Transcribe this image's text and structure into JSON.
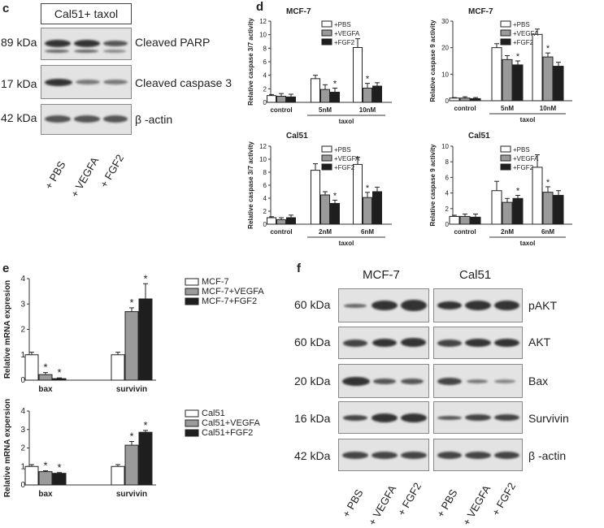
{
  "panels": {
    "c": "c",
    "d": "d",
    "e": "e",
    "f": "f"
  },
  "panel_c": {
    "title": "Cal51+ taxol",
    "rows": [
      {
        "kda": "89 kDa",
        "label": "Cleaved PARP"
      },
      {
        "kda": "17 kDa",
        "label": "Cleaved caspase 3"
      },
      {
        "kda": "42 kDa",
        "label": "β -actin"
      }
    ],
    "lanes": [
      "+ PBS",
      "+ VEGFA",
      "+ FGF2"
    ]
  },
  "panel_f": {
    "groups": [
      "MCF-7",
      "Cal51"
    ],
    "rows": [
      {
        "kda": "60 kDa",
        "label": "pAKT"
      },
      {
        "kda": "60 kDa",
        "label": "AKT"
      },
      {
        "kda": "20 kDa",
        "label": "Bax"
      },
      {
        "kda": "16 kDa",
        "label": "Survivin"
      },
      {
        "kda": "42 kDa",
        "label": "β -actin"
      }
    ],
    "lanes": [
      "+ PBS",
      "+ VEGFA",
      "+ FGF2",
      "+ PBS",
      "+ VEGFA",
      "+ FGF2"
    ]
  },
  "colors": {
    "pbs": "#ffffff",
    "vegfa": "#9a9a9a",
    "fgf2": "#1e1e1e",
    "axis": "#333333"
  },
  "chart_data": [
    {
      "id": "d1",
      "type": "bar",
      "title": "MCF-7",
      "ylabel": "Relative caspase 3/7 activity",
      "ylim": [
        0,
        12
      ],
      "yticks": [
        0,
        2,
        4,
        6,
        8,
        10,
        12
      ],
      "categories": [
        "control",
        "5nM",
        "10nM"
      ],
      "group_label": "taxol",
      "series": [
        {
          "name": "+PBS",
          "values": [
            1.0,
            3.5,
            8.1
          ],
          "errors": [
            0.15,
            0.5,
            1.3
          ]
        },
        {
          "name": "+VEGFA",
          "values": [
            0.9,
            1.9,
            2.1
          ],
          "errors": [
            0.4,
            0.7,
            0.7
          ]
        },
        {
          "name": "+FGF2",
          "values": [
            0.8,
            1.5,
            2.4
          ],
          "errors": [
            0.4,
            0.6,
            0.5
          ]
        }
      ],
      "annotations": [
        "",
        "*",
        "*",
        "",
        "*",
        "*"
      ]
    },
    {
      "id": "d2",
      "type": "bar",
      "title": "MCF-7",
      "ylabel": "Relative caspase 9 activity",
      "ylim": [
        0,
        30
      ],
      "yticks": [
        0,
        10,
        20,
        30
      ],
      "categories": [
        "control",
        "5nM",
        "10nM"
      ],
      "group_label": "taxol",
      "series": [
        {
          "name": "+PBS",
          "values": [
            1.0,
            20.0,
            25.0
          ],
          "errors": [
            0.2,
            1.5,
            2.0
          ]
        },
        {
          "name": "+VEGFA",
          "values": [
            1.0,
            15.5,
            16.5
          ],
          "errors": [
            0.5,
            1.5,
            1.5
          ]
        },
        {
          "name": "+FGF2",
          "values": [
            0.8,
            13.5,
            13.0
          ],
          "errors": [
            0.4,
            1.5,
            1.5
          ]
        }
      ],
      "annotations": [
        "",
        "*",
        "*",
        "",
        "*",
        "*"
      ]
    },
    {
      "id": "d3",
      "type": "bar",
      "title": "Cal51",
      "ylabel": "Relative caspase 3/7 activity",
      "ylim": [
        0,
        12
      ],
      "yticks": [
        0,
        2,
        4,
        6,
        8,
        10,
        12
      ],
      "categories": [
        "control",
        "2nM",
        "6nM"
      ],
      "group_label": "taxol",
      "series": [
        {
          "name": "+PBS",
          "values": [
            1.0,
            8.3,
            9.2
          ],
          "errors": [
            0.15,
            1.0,
            1.1
          ]
        },
        {
          "name": "+VEGFA",
          "values": [
            0.7,
            4.5,
            4.1
          ],
          "errors": [
            0.3,
            0.5,
            0.8
          ]
        },
        {
          "name": "+FGF2",
          "values": [
            1.0,
            3.2,
            5.0
          ],
          "errors": [
            0.4,
            0.5,
            0.7
          ]
        }
      ],
      "annotations": [
        "",
        "*",
        "*",
        "",
        "*",
        "*"
      ]
    },
    {
      "id": "d4",
      "type": "bar",
      "title": "Cal51",
      "ylabel": "Relative caspase 9 activity",
      "ylim": [
        0,
        10
      ],
      "yticks": [
        0,
        2,
        4,
        6,
        8,
        10
      ],
      "categories": [
        "control",
        "2nM",
        "6nM"
      ],
      "group_label": "taxol",
      "series": [
        {
          "name": "+PBS",
          "values": [
            1.0,
            4.3,
            7.3
          ],
          "errors": [
            0.15,
            1.2,
            1.6
          ]
        },
        {
          "name": "+VEGFA",
          "values": [
            1.0,
            2.8,
            4.1
          ],
          "errors": [
            0.3,
            0.5,
            0.7
          ]
        },
        {
          "name": "+FGF2",
          "values": [
            0.9,
            3.3,
            3.7
          ],
          "errors": [
            0.4,
            0.4,
            0.6
          ]
        }
      ],
      "annotations": [
        "",
        "*",
        "*",
        "",
        "*",
        "*"
      ]
    },
    {
      "id": "e1",
      "type": "bar",
      "title": "",
      "ylabel": "Relative mRNA expresion",
      "ylim": [
        0,
        4
      ],
      "yticks": [
        0,
        1,
        2,
        3,
        4
      ],
      "categories": [
        "bax",
        "survivin"
      ],
      "series": [
        {
          "name": "MCF-7",
          "values": [
            1.0,
            1.0
          ],
          "errors": [
            0.1,
            0.1
          ]
        },
        {
          "name": "MCF-7+VEGFA",
          "values": [
            0.22,
            2.7
          ],
          "errors": [
            0.08,
            0.15
          ]
        },
        {
          "name": "MCF-7+FGF2",
          "values": [
            0.06,
            3.2
          ],
          "errors": [
            0.03,
            0.6
          ]
        }
      ],
      "annotations": [
        "*",
        "*",
        "*",
        "*"
      ]
    },
    {
      "id": "e2",
      "type": "bar",
      "title": "",
      "ylabel": "Relative mRNA expersion",
      "ylim": [
        0,
        4
      ],
      "yticks": [
        0,
        1,
        2,
        3,
        4
      ],
      "categories": [
        "bax",
        "survivin"
      ],
      "series": [
        {
          "name": "Cal51",
          "values": [
            1.0,
            1.0
          ],
          "errors": [
            0.1,
            0.1
          ]
        },
        {
          "name": "Cal51+VEGFA",
          "values": [
            0.72,
            2.15
          ],
          "errors": [
            0.05,
            0.2
          ]
        },
        {
          "name": "Cal51+FGF2",
          "values": [
            0.63,
            2.85
          ],
          "errors": [
            0.04,
            0.1
          ]
        }
      ],
      "annotations": [
        "*",
        "*",
        "*",
        "*"
      ]
    }
  ]
}
